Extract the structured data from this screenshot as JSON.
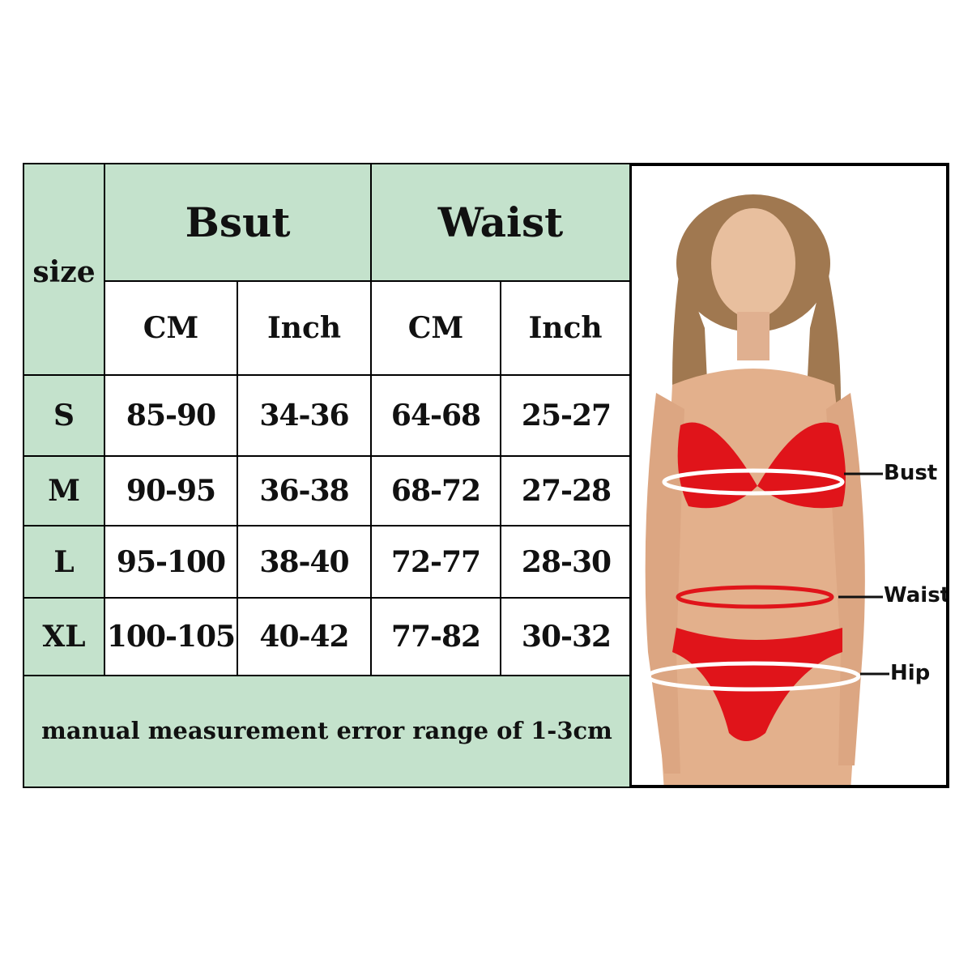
{
  "table": {
    "size_header": "size",
    "groups": [
      "Bsut",
      "Waist"
    ],
    "units": [
      "CM",
      "Inch",
      "CM",
      "Inch"
    ],
    "rows": [
      {
        "size": "S",
        "values": [
          "85-90",
          "34-36",
          "64-68",
          "25-27"
        ]
      },
      {
        "size": "M",
        "values": [
          "90-95",
          "36-38",
          "68-72",
          "27-28"
        ]
      },
      {
        "size": "L",
        "values": [
          "95-100",
          "38-40",
          "72-77",
          "28-30"
        ]
      },
      {
        "size": "XL",
        "values": [
          "100-105",
          "40-42",
          "77-82",
          "30-32"
        ]
      }
    ],
    "note": "manual measurement error range of 1-3cm"
  },
  "figure": {
    "labels": [
      "Bust",
      "Waist",
      "Hip"
    ]
  },
  "colors": {
    "header_green": "#c4e2cc",
    "bikini_red": "#e0141a"
  }
}
